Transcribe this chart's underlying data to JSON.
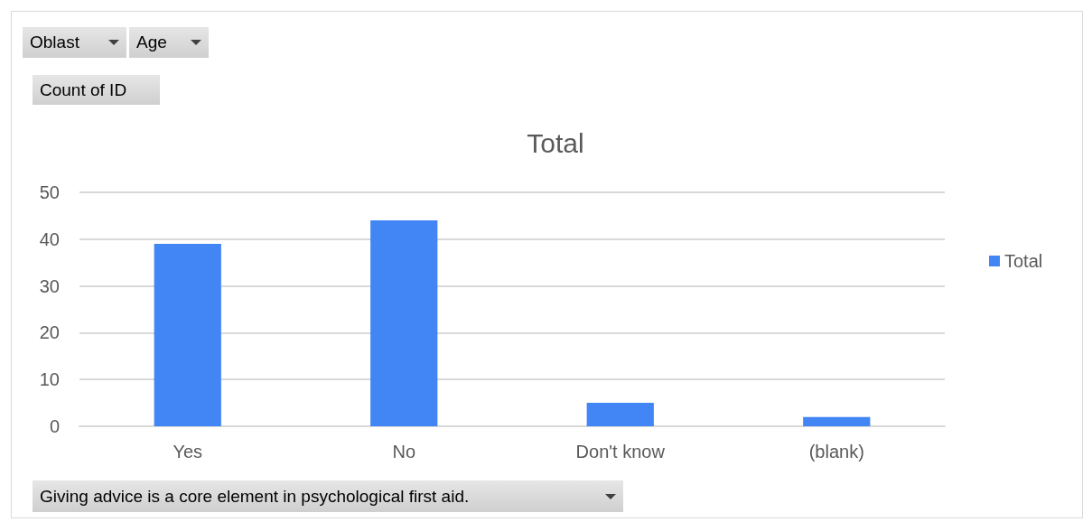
{
  "chart_data": {
    "type": "bar",
    "title": "Total",
    "categories": [
      "Yes",
      "No",
      "Don't know",
      "(blank)"
    ],
    "series": [
      {
        "name": "Total",
        "color": "#4285f4",
        "values": [
          39,
          44,
          5,
          2
        ]
      }
    ],
    "ylim": [
      0,
      50
    ],
    "yticks": [
      0,
      10,
      20,
      30,
      40,
      50
    ],
    "grid": "y",
    "legend": "right",
    "annotations": [
      "Oblast",
      "Age",
      "Count of ID",
      "Giving advice is a core element in psychological first aid."
    ]
  }
}
